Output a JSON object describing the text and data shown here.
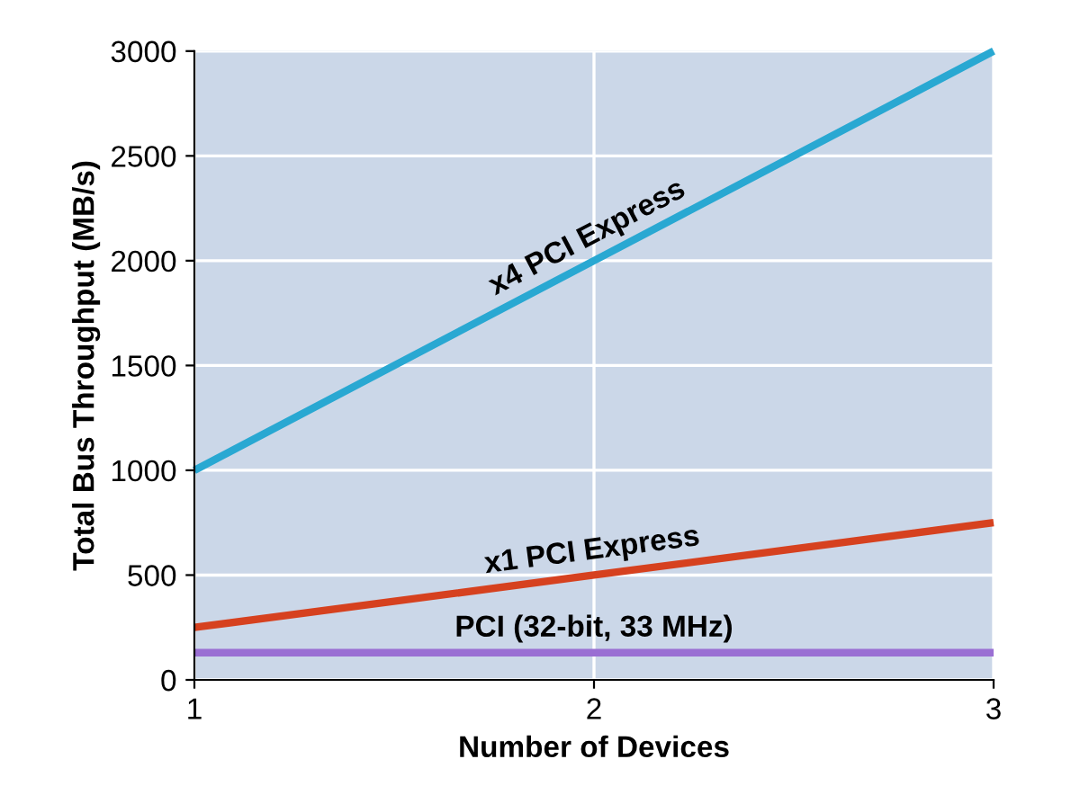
{
  "chart_data": {
    "type": "line",
    "xlabel": "Number of Devices",
    "ylabel": "Total Bus Throughput (MB/s)",
    "x": [
      1,
      2,
      3
    ],
    "xlim": [
      1,
      3
    ],
    "xticks": [
      1,
      2,
      3
    ],
    "ylim": [
      0,
      3000
    ],
    "yticks": [
      0,
      500,
      1000,
      1500,
      2000,
      2500,
      3000
    ],
    "grid": true,
    "series": [
      {
        "name": "x4 PCI Express",
        "color": "#29a8d2",
        "values": [
          1000,
          2000,
          3000
        ]
      },
      {
        "name": "x1 PCI Express",
        "color": "#d6411f",
        "values": [
          250,
          500,
          750
        ]
      },
      {
        "name": "PCI (32-bit, 33 MHz)",
        "color": "#9a6fd3",
        "values": [
          130,
          130,
          130
        ]
      }
    ]
  }
}
